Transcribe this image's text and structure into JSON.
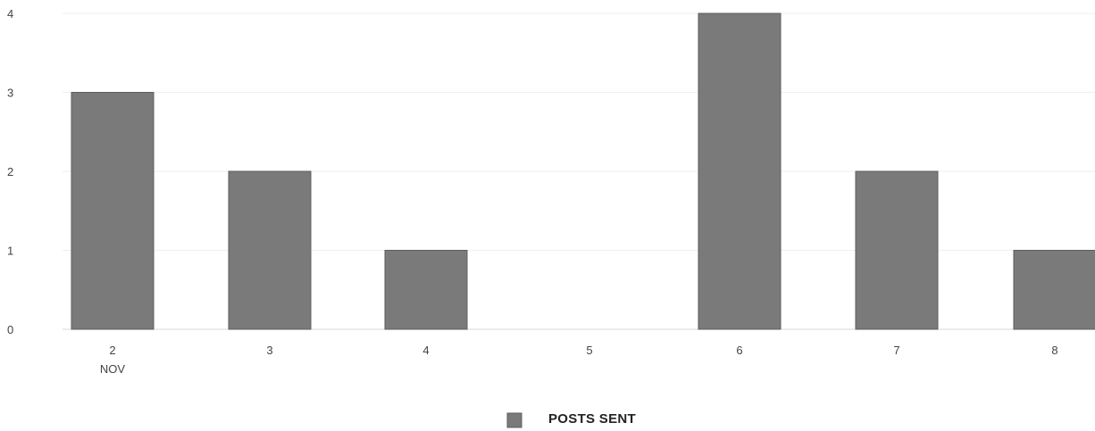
{
  "chart_data": {
    "type": "bar",
    "title": "",
    "xlabel": "",
    "ylabel": "",
    "categories": [
      "2",
      "3",
      "4",
      "5",
      "6",
      "7",
      "8"
    ],
    "category_sublabels": [
      "NOV",
      "",
      "",
      "",
      "",
      "",
      ""
    ],
    "series": [
      {
        "name": "POSTS SENT",
        "values": [
          3,
          2,
          1,
          0,
          4,
          2,
          1
        ],
        "color": "#7a7a7a"
      }
    ],
    "ylim": [
      0,
      4
    ],
    "yticks": [
      "0",
      "1",
      "2",
      "3",
      "4"
    ],
    "grid": true,
    "legend_position": "bottom-center"
  }
}
